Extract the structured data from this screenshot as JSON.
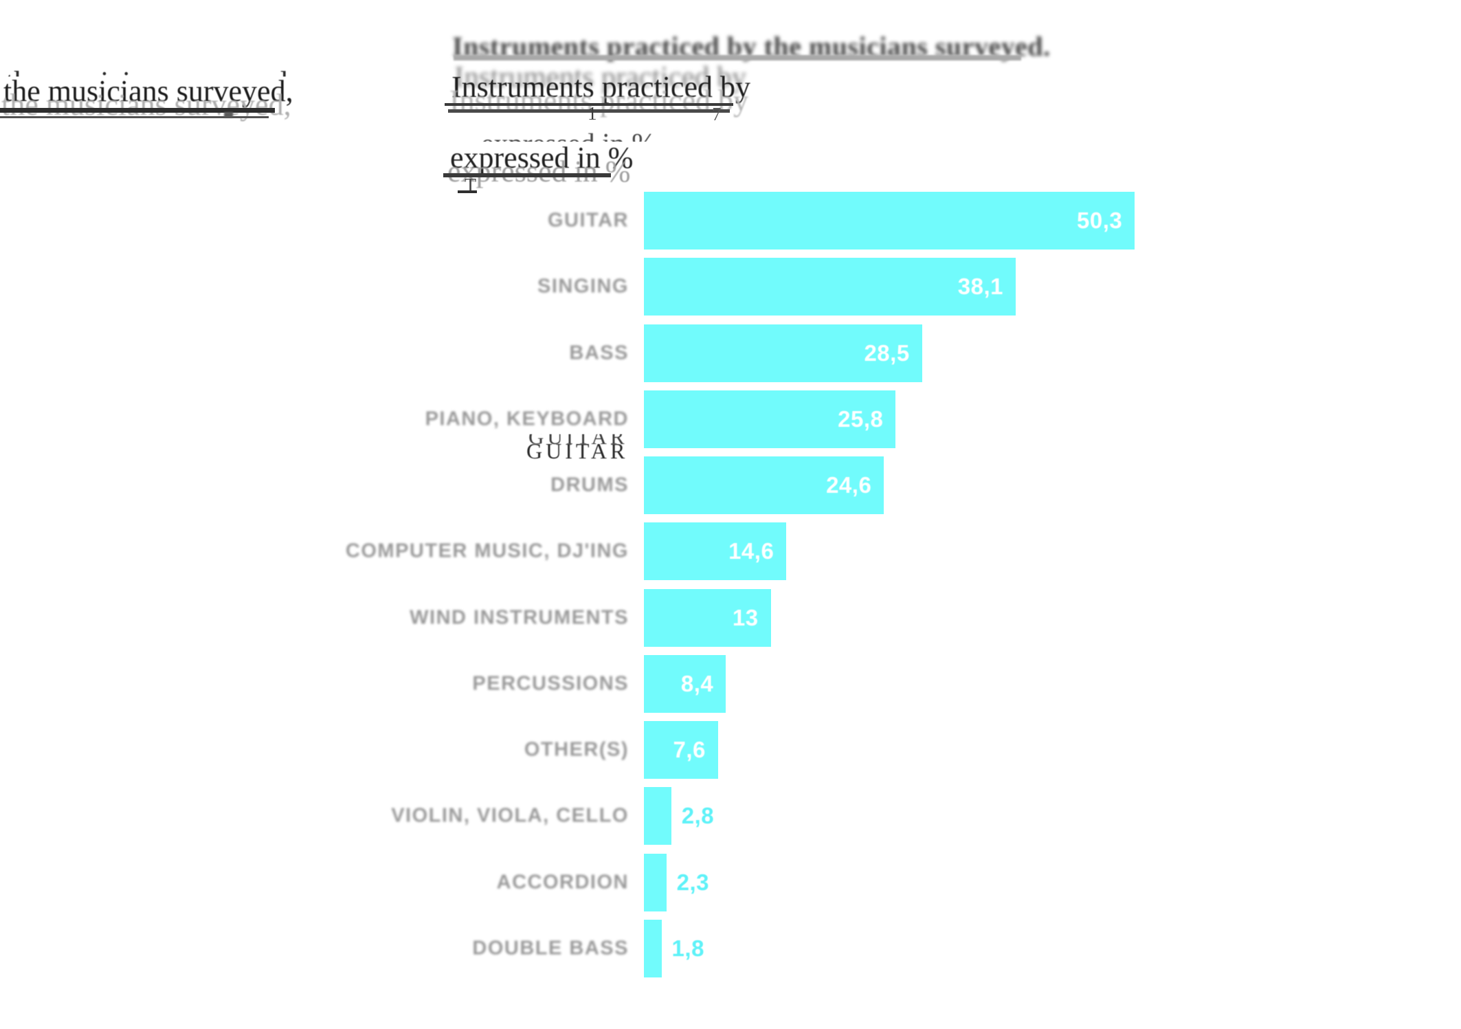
{
  "title": {
    "top_line": "Instruments practiced by the musicians surveyed.",
    "line2": "Instruments practiced by",
    "line3": "expressed in %",
    "ghost_left": "the musicians surveyed,",
    "ghost_guitar": "GUITAR",
    "fragments": {
      "one": "1",
      "seven": "7",
      "tee": "T"
    }
  },
  "colors": {
    "bar": "#71fbfc",
    "value_inside": "#ffffff",
    "value_outside": "#5ef2f8",
    "category_label": "#989898",
    "background": "#ffffff"
  },
  "chart_data": {
    "type": "bar",
    "orientation": "horizontal",
    "title": "Instruments practiced by the musicians surveyed, expressed in %",
    "categories": [
      "GUITAR",
      "SINGING",
      "BASS",
      "PIANO, KEYBOARD",
      "DRUMS",
      "COMPUTER MUSIC, DJ'ING",
      "WIND INSTRUMENTS",
      "PERCUSSIONS",
      "OTHER(S)",
      "VIOLIN, VIOLA, CELLO",
      "ACCORDION",
      "DOUBLE BASS"
    ],
    "values": [
      50.3,
      38.1,
      28.5,
      25.8,
      24.6,
      14.6,
      13,
      8.4,
      7.6,
      2.8,
      2.3,
      1.8
    ],
    "value_labels": [
      "50,3",
      "38,1",
      "28,5",
      "25,8",
      "24,6",
      "14,6",
      "13",
      "8,4",
      "7,6",
      "2,8",
      "2,3",
      "1,8"
    ],
    "xlim": [
      0,
      52
    ],
    "unit": "%",
    "grid": false,
    "legend": false,
    "value_label_placement_threshold": 5
  }
}
